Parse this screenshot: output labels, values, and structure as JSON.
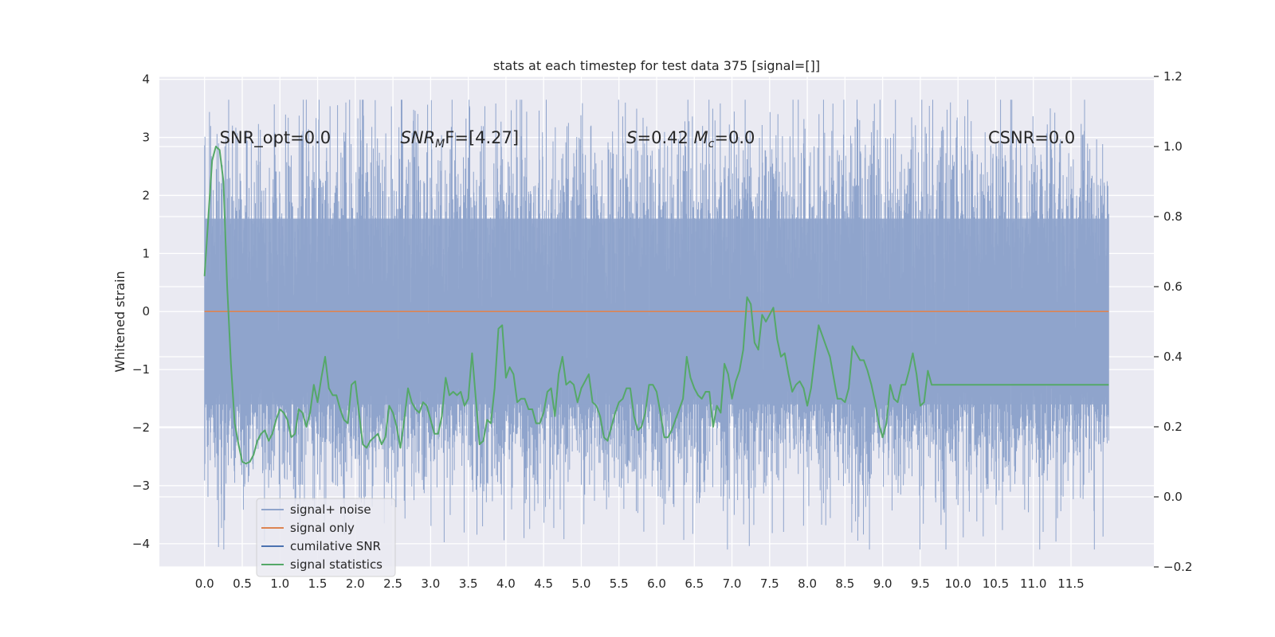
{
  "chart_data": {
    "type": "line",
    "title": "stats at each timestep for test data 375 [signal=[]]",
    "ylabel": "Whitened strain",
    "xlabel": "",
    "xlim": [
      -0.6,
      12.6
    ],
    "ylim": [
      -4.4,
      4.05
    ],
    "y2lim": [
      -0.2,
      1.2
    ],
    "x_ticks": [
      "0.0",
      "0.5",
      "1.0",
      "1.5",
      "2.0",
      "2.5",
      "3.0",
      "3.5",
      "4.0",
      "4.5",
      "5.0",
      "5.5",
      "6.0",
      "6.5",
      "7.0",
      "7.5",
      "8.0",
      "8.5",
      "9.0",
      "9.5",
      "10.0",
      "10.5",
      "11.0",
      "11.5"
    ],
    "y_ticks": [
      "4",
      "3",
      "2",
      "1",
      "0",
      "−1",
      "−2",
      "−3",
      "−4"
    ],
    "y2_ticks": [
      "1.2",
      "1.0",
      "0.8",
      "0.6",
      "0.4",
      "0.2",
      "0.0",
      "−0.2"
    ],
    "grid": true,
    "legend_position": "lower-left",
    "annotations": [
      {
        "label": "SNR_opt=0.0",
        "x": 0.2,
        "y": 2.9
      },
      {
        "label_prefix": "SNR",
        "label_sub": "M",
        "label_suffix": "F=[4.27]",
        "x": 2.6,
        "y": 2.9
      },
      {
        "label_prefix": "S",
        "label_mid": "=0.42   ",
        "label_m": "M",
        "label_sub": "c",
        "label_suffix": "=0.0",
        "x": 5.6,
        "y": 2.9
      },
      {
        "label": "CSNR=0.0",
        "x": 10.4,
        "y": 2.9
      }
    ],
    "series": [
      {
        "name": "signal+ noise",
        "color": "#8fa4cc",
        "axis": "left",
        "x_range": [
          0.0,
          12.0
        ],
        "envelope_min": -4.1,
        "envelope_max": 3.65,
        "typical_range": [
          -2.1,
          2.5
        ]
      },
      {
        "name": "signal only",
        "color": "#dd8452",
        "axis": "left",
        "x": [
          0.0,
          12.0
        ],
        "y": [
          0.0,
          0.0
        ]
      },
      {
        "name": "cumilative SNR",
        "color": "#4c72b0",
        "axis": "right",
        "x": [],
        "y": []
      },
      {
        "name": "signal statistics",
        "color": "#55a868",
        "axis": "right",
        "x": [
          0.0,
          0.05,
          0.1,
          0.15,
          0.2,
          0.25,
          0.3,
          0.35,
          0.4,
          0.45,
          0.5,
          0.55,
          0.6,
          0.65,
          0.7,
          0.75,
          0.8,
          0.85,
          0.9,
          0.95,
          1.0,
          1.05,
          1.1,
          1.15,
          1.2,
          1.25,
          1.3,
          1.35,
          1.4,
          1.45,
          1.5,
          1.55,
          1.6,
          1.65,
          1.7,
          1.75,
          1.8,
          1.85,
          1.9,
          1.95,
          2.0,
          2.05,
          2.1,
          2.15,
          2.2,
          2.25,
          2.3,
          2.35,
          2.4,
          2.45,
          2.5,
          2.55,
          2.6,
          2.65,
          2.7,
          2.75,
          2.8,
          2.85,
          2.9,
          2.95,
          3.0,
          3.05,
          3.1,
          3.15,
          3.2,
          3.25,
          3.3,
          3.35,
          3.4,
          3.45,
          3.5,
          3.55,
          3.6,
          3.65,
          3.7,
          3.75,
          3.8,
          3.85,
          3.9,
          3.95,
          4.0,
          4.05,
          4.1,
          4.15,
          4.2,
          4.25,
          4.3,
          4.35,
          4.4,
          4.45,
          4.5,
          4.55,
          4.6,
          4.65,
          4.7,
          4.75,
          4.8,
          4.85,
          4.9,
          4.95,
          5.0,
          5.05,
          5.1,
          5.15,
          5.2,
          5.25,
          5.3,
          5.35,
          5.4,
          5.45,
          5.5,
          5.55,
          5.6,
          5.65,
          5.7,
          5.75,
          5.8,
          5.85,
          5.9,
          5.95,
          6.0,
          6.05,
          6.1,
          6.15,
          6.2,
          6.25,
          6.3,
          6.35,
          6.4,
          6.45,
          6.5,
          6.55,
          6.6,
          6.65,
          6.7,
          6.75,
          6.8,
          6.85,
          6.9,
          6.95,
          7.0,
          7.05,
          7.1,
          7.15,
          7.2,
          7.25,
          7.3,
          7.35,
          7.4,
          7.45,
          7.5,
          7.55,
          7.6,
          7.65,
          7.7,
          7.75,
          7.8,
          7.85,
          7.9,
          7.95,
          8.0,
          8.05,
          8.1,
          8.15,
          8.2,
          8.25,
          8.3,
          8.35,
          8.4,
          8.45,
          8.5,
          8.55,
          8.6,
          8.65,
          8.7,
          8.75,
          8.8,
          8.85,
          8.9,
          8.95,
          9.0,
          9.05,
          9.1,
          9.15,
          9.2,
          9.25,
          9.3,
          9.35,
          9.4,
          9.45,
          9.5,
          9.55,
          9.6,
          9.65,
          9.7,
          9.75,
          9.8,
          9.85,
          9.9,
          9.95,
          10.0,
          10.05,
          10.1,
          10.15,
          10.2,
          10.25,
          10.3,
          10.35,
          10.4,
          10.45,
          10.5,
          10.55,
          10.6,
          10.65,
          10.7,
          10.75,
          10.8,
          10.85,
          10.9,
          10.95,
          11.0,
          11.05,
          11.1,
          11.15,
          11.2,
          11.25,
          11.3,
          11.35,
          11.4,
          11.45,
          11.5,
          11.55,
          11.6,
          11.65,
          11.7,
          11.75,
          11.8,
          11.85,
          11.9,
          11.95,
          12.0
        ],
        "y": [
          0.63,
          0.8,
          0.96,
          1.0,
          0.99,
          0.9,
          0.6,
          0.38,
          0.21,
          0.15,
          0.1,
          0.095,
          0.1,
          0.12,
          0.16,
          0.18,
          0.19,
          0.16,
          0.18,
          0.22,
          0.25,
          0.24,
          0.22,
          0.17,
          0.18,
          0.25,
          0.24,
          0.2,
          0.24,
          0.32,
          0.27,
          0.34,
          0.4,
          0.31,
          0.29,
          0.29,
          0.25,
          0.22,
          0.21,
          0.32,
          0.33,
          0.24,
          0.15,
          0.14,
          0.16,
          0.17,
          0.18,
          0.15,
          0.17,
          0.26,
          0.24,
          0.2,
          0.14,
          0.22,
          0.31,
          0.27,
          0.25,
          0.24,
          0.27,
          0.26,
          0.22,
          0.18,
          0.18,
          0.23,
          0.34,
          0.29,
          0.3,
          0.29,
          0.3,
          0.26,
          0.28,
          0.41,
          0.28,
          0.15,
          0.16,
          0.22,
          0.21,
          0.31,
          0.48,
          0.49,
          0.34,
          0.37,
          0.35,
          0.27,
          0.28,
          0.28,
          0.25,
          0.25,
          0.21,
          0.21,
          0.24,
          0.3,
          0.31,
          0.23,
          0.35,
          0.4,
          0.32,
          0.33,
          0.32,
          0.27,
          0.31,
          0.33,
          0.35,
          0.27,
          0.26,
          0.23,
          0.17,
          0.16,
          0.2,
          0.24,
          0.27,
          0.28,
          0.31,
          0.31,
          0.23,
          0.19,
          0.2,
          0.24,
          0.32,
          0.32,
          0.3,
          0.24,
          0.17,
          0.17,
          0.19,
          0.22,
          0.25,
          0.28,
          0.4,
          0.34,
          0.31,
          0.29,
          0.28,
          0.3,
          0.3,
          0.2,
          0.26,
          0.24,
          0.38,
          0.35,
          0.28,
          0.33,
          0.36,
          0.42,
          0.57,
          0.55,
          0.44,
          0.42,
          0.52,
          0.5,
          0.52,
          0.54,
          0.45,
          0.4,
          0.41,
          0.35,
          0.3,
          0.32,
          0.33,
          0.31,
          0.26,
          0.31,
          0.4,
          0.49,
          0.46,
          0.43,
          0.4,
          0.34,
          0.28,
          0.28,
          0.27,
          0.31,
          0.43,
          0.41,
          0.39,
          0.39,
          0.36,
          0.32,
          0.27,
          0.21,
          0.17,
          0.21,
          0.32,
          0.28,
          0.27,
          0.32,
          0.32,
          0.36,
          0.41,
          0.35,
          0.26,
          0.27,
          0.36,
          0.32,
          0.32,
          0.32,
          0.32,
          0.32,
          0.32,
          0.32,
          0.32,
          0.32,
          0.32,
          0.32,
          0.32,
          0.32,
          0.32,
          0.32,
          0.32,
          0.32,
          0.32,
          0.32,
          0.32,
          0.32,
          0.32,
          0.32,
          0.32,
          0.32,
          0.32,
          0.32,
          0.32,
          0.32,
          0.32,
          0.32,
          0.32,
          0.32,
          0.32,
          0.32,
          0.32,
          0.32,
          0.32,
          0.32,
          0.32,
          0.32,
          0.32,
          0.32,
          0.32,
          0.32,
          0.32,
          0.32,
          0.32
        ]
      }
    ]
  }
}
